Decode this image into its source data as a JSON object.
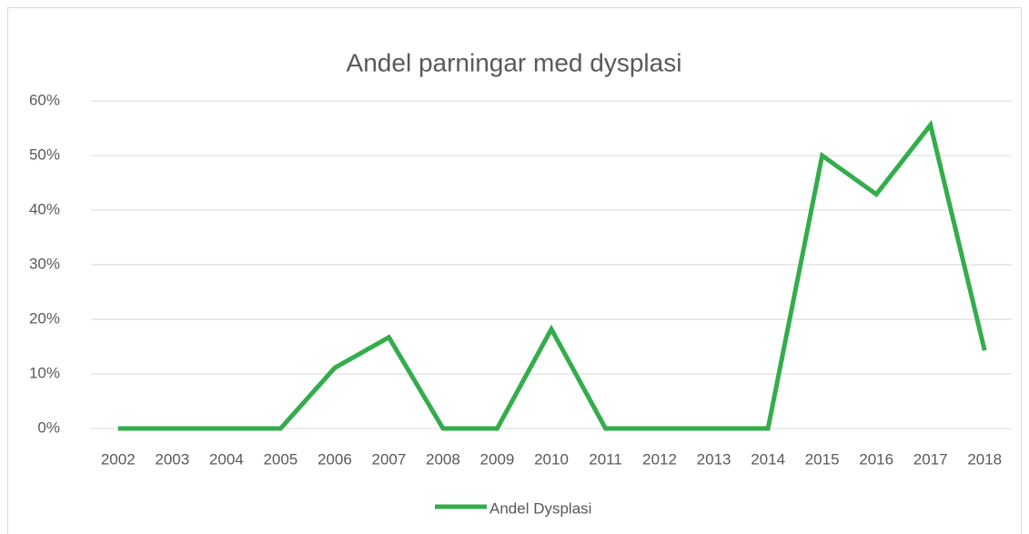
{
  "chart_data": {
    "type": "line",
    "title": "Andel parningar med dysplasi",
    "categories": [
      "2002",
      "2003",
      "2004",
      "2005",
      "2006",
      "2007",
      "2008",
      "2009",
      "2010",
      "2011",
      "2012",
      "2013",
      "2014",
      "2015",
      "2016",
      "2017",
      "2018"
    ],
    "series": [
      {
        "name": "Andel Dysplasi",
        "color": "#33ad4b",
        "values": [
          0,
          0,
          0,
          0,
          11.1,
          16.7,
          0,
          0,
          18.2,
          0,
          0,
          0,
          0,
          50,
          42.9,
          55.6,
          14.3
        ]
      }
    ],
    "ylim": [
      0,
      60
    ],
    "yticks": [
      {
        "value": 0,
        "label": "0%"
      },
      {
        "value": 10,
        "label": "10%"
      },
      {
        "value": 20,
        "label": "20%"
      },
      {
        "value": 30,
        "label": "30%"
      },
      {
        "value": 40,
        "label": "40%"
      },
      {
        "value": 50,
        "label": "50%"
      },
      {
        "value": 60,
        "label": "60%"
      }
    ],
    "grid": true,
    "legend": "bottom"
  }
}
